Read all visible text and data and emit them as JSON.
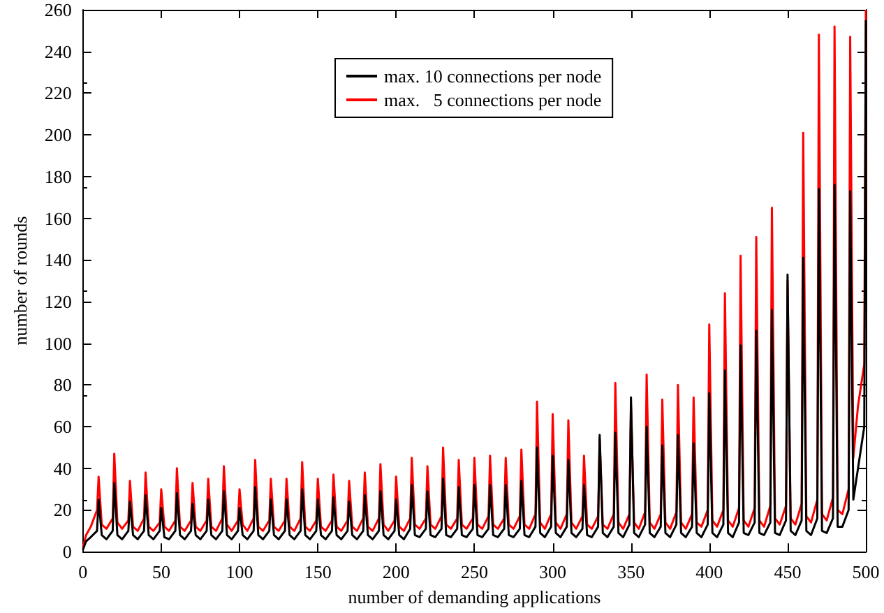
{
  "chart_data": {
    "type": "line",
    "xlabel": "number of demanding applications",
    "ylabel": "number of rounds",
    "x": [
      0,
      2,
      5,
      9,
      10,
      12,
      15,
      19,
      20,
      22,
      25,
      29,
      30,
      32,
      35,
      39,
      40,
      42,
      45,
      49,
      50,
      52,
      55,
      59,
      60,
      62,
      65,
      69,
      70,
      72,
      75,
      79,
      80,
      82,
      85,
      89,
      90,
      92,
      95,
      99,
      100,
      102,
      105,
      109,
      110,
      112,
      115,
      119,
      120,
      122,
      125,
      129,
      130,
      132,
      135,
      139,
      140,
      142,
      145,
      149,
      150,
      152,
      155,
      159,
      160,
      162,
      165,
      169,
      170,
      172,
      175,
      179,
      180,
      182,
      185,
      189,
      190,
      192,
      195,
      199,
      200,
      202,
      205,
      209,
      210,
      212,
      215,
      219,
      220,
      222,
      225,
      229,
      230,
      232,
      235,
      239,
      240,
      242,
      245,
      249,
      250,
      252,
      255,
      259,
      260,
      262,
      265,
      269,
      270,
      272,
      275,
      279,
      280,
      282,
      285,
      289,
      290,
      292,
      295,
      299,
      300,
      302,
      305,
      309,
      310,
      312,
      315,
      319,
      320,
      322,
      325,
      329,
      330,
      332,
      335,
      339,
      340,
      342,
      345,
      349,
      350,
      352,
      355,
      359,
      360,
      362,
      365,
      369,
      370,
      372,
      375,
      379,
      380,
      382,
      385,
      389,
      390,
      392,
      395,
      399,
      400,
      402,
      405,
      409,
      410,
      412,
      415,
      419,
      420,
      422,
      425,
      429,
      430,
      432,
      435,
      439,
      440,
      442,
      445,
      449,
      450,
      452,
      455,
      459,
      460,
      462,
      465,
      469,
      470,
      472,
      475,
      479,
      480,
      482,
      485,
      489,
      490,
      492,
      495,
      499,
      500
    ],
    "series": [
      {
        "name": "max. 10 connections per node",
        "color": "#000000",
        "values": [
          1,
          5,
          7,
          10,
          25,
          8,
          6,
          10,
          33,
          8,
          6,
          10,
          24,
          8,
          6,
          10,
          27,
          8,
          6,
          10,
          21,
          7,
          6,
          10,
          28,
          8,
          6,
          10,
          23,
          8,
          6,
          10,
          25,
          8,
          6,
          10,
          29,
          8,
          6,
          10,
          21,
          8,
          6,
          10,
          31,
          8,
          6,
          10,
          25,
          8,
          6,
          10,
          25,
          8,
          6,
          10,
          30,
          8,
          6,
          10,
          25,
          8,
          6,
          10,
          26,
          8,
          6,
          10,
          24,
          8,
          6,
          10,
          27,
          8,
          6,
          10,
          29,
          8,
          6,
          10,
          25,
          8,
          6,
          11,
          32,
          8,
          7,
          11,
          29,
          8,
          7,
          11,
          35,
          8,
          7,
          11,
          31,
          8,
          7,
          11,
          32,
          8,
          7,
          11,
          32,
          8,
          7,
          11,
          32,
          8,
          7,
          11,
          34,
          8,
          7,
          12,
          50,
          9,
          7,
          12,
          46,
          9,
          7,
          12,
          44,
          9,
          7,
          11,
          32,
          8,
          7,
          12,
          56,
          9,
          7,
          12,
          57,
          9,
          7,
          13,
          74,
          9,
          7,
          13,
          60,
          9,
          7,
          12,
          51,
          9,
          7,
          13,
          56,
          9,
          7,
          12,
          52,
          9,
          7,
          13,
          76,
          9,
          7,
          13,
          87,
          9,
          7,
          14,
          99,
          9,
          8,
          14,
          106,
          9,
          8,
          14,
          116,
          9,
          8,
          15,
          133,
          10,
          8,
          15,
          141,
          10,
          8,
          16,
          174,
          10,
          9,
          16,
          176,
          12,
          12,
          20,
          173,
          25,
          40,
          60,
          255
        ]
      },
      {
        "name": "max.   5 connections per node",
        "color": "#ff0000",
        "values": [
          2,
          8,
          12,
          20,
          36,
          13,
          11,
          16,
          47,
          14,
          11,
          15,
          34,
          12,
          10,
          16,
          38,
          12,
          10,
          14,
          30,
          12,
          10,
          15,
          40,
          12,
          10,
          15,
          33,
          12,
          10,
          15,
          35,
          12,
          10,
          16,
          41,
          13,
          10,
          15,
          30,
          13,
          10,
          16,
          44,
          12,
          10,
          15,
          35,
          12,
          10,
          15,
          35,
          12,
          10,
          16,
          43,
          12,
          10,
          15,
          35,
          12,
          10,
          15,
          37,
          12,
          10,
          15,
          34,
          12,
          10,
          16,
          38,
          12,
          10,
          16,
          42,
          13,
          10,
          15,
          36,
          12,
          10,
          16,
          45,
          13,
          11,
          16,
          41,
          13,
          11,
          17,
          50,
          13,
          11,
          16,
          44,
          13,
          11,
          16,
          45,
          13,
          11,
          17,
          46,
          13,
          11,
          16,
          45,
          13,
          11,
          17,
          49,
          13,
          11,
          18,
          72,
          14,
          11,
          18,
          66,
          14,
          11,
          18,
          63,
          14,
          11,
          17,
          46,
          13,
          11,
          17,
          54,
          13,
          11,
          18,
          81,
          14,
          11,
          18,
          70,
          14,
          11,
          19,
          85,
          14,
          11,
          18,
          73,
          14,
          11,
          19,
          80,
          14,
          11,
          18,
          74,
          14,
          12,
          20,
          109,
          15,
          12,
          20,
          124,
          15,
          12,
          21,
          142,
          15,
          12,
          21,
          151,
          15,
          12,
          22,
          165,
          16,
          13,
          22,
          130,
          16,
          13,
          23,
          201,
          17,
          14,
          25,
          248,
          18,
          15,
          26,
          252,
          20,
          18,
          30,
          247,
          45,
          70,
          90,
          260
        ]
      }
    ],
    "xlim": [
      0,
      500
    ],
    "xticks": [
      0,
      50,
      100,
      150,
      200,
      250,
      300,
      350,
      400,
      450,
      500
    ],
    "ylim": [
      0,
      260
    ],
    "yticks": [
      0,
      20,
      40,
      60,
      80,
      100,
      120,
      140,
      160,
      180,
      200,
      220,
      240,
      260
    ],
    "grid": false,
    "legend": "top",
    "marker": "none",
    "line_style": "solid"
  }
}
